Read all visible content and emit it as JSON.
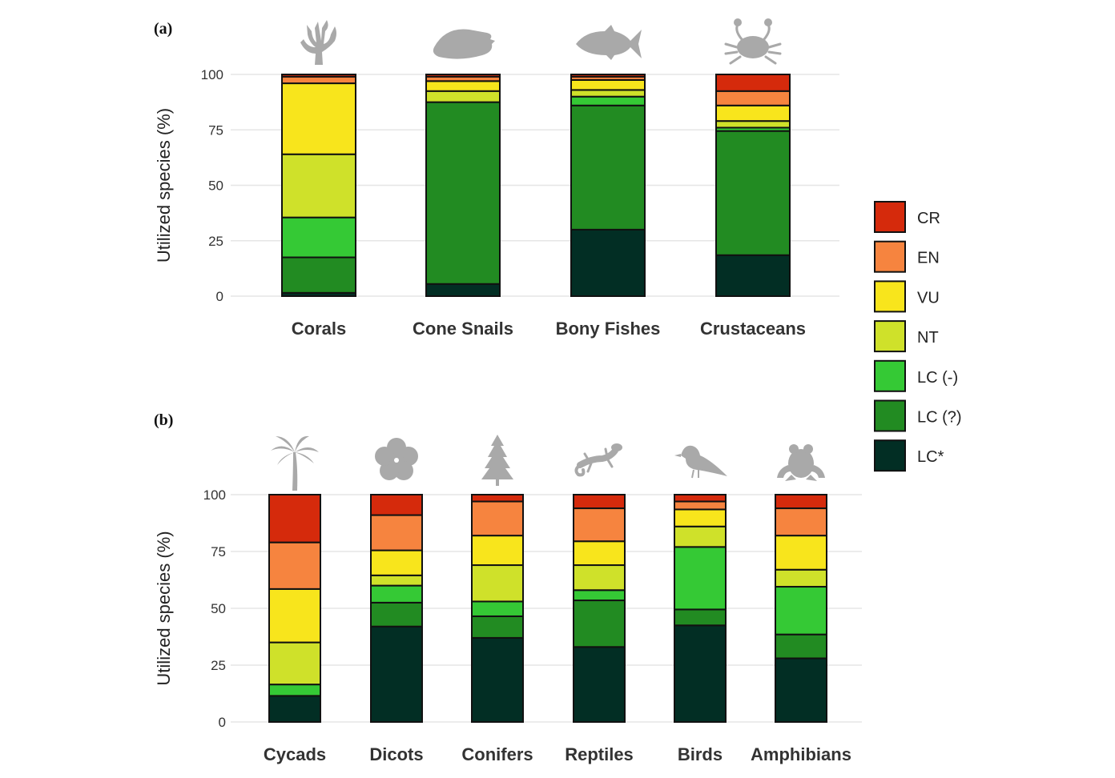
{
  "legend": {
    "items": [
      {
        "key": "CR",
        "label": "CR",
        "color": "#d52a0c"
      },
      {
        "key": "EN",
        "label": "EN",
        "color": "#f6843f"
      },
      {
        "key": "VU",
        "label": "VU",
        "color": "#f8e51c"
      },
      {
        "key": "NT",
        "label": "NT",
        "color": "#cfe12a"
      },
      {
        "key": "LCm",
        "label": "LC (-)",
        "color": "#35c935"
      },
      {
        "key": "LCq",
        "label": "LC (?)",
        "color": "#228b22"
      },
      {
        "key": "LCs",
        "label": "LC*",
        "color": "#022e24"
      }
    ]
  },
  "chart_data": [
    {
      "panel": "(a)",
      "type": "bar",
      "stacked": true,
      "ylabel": "Utilized species (%)",
      "ylim": [
        0,
        100
      ],
      "yticks": [
        0,
        25,
        50,
        75,
        100
      ],
      "grid": true,
      "categories": [
        "Corals",
        "Cone Snails",
        "Bony Fishes",
        "Crustaceans"
      ],
      "icons": [
        "coral-icon",
        "cone-snail-icon",
        "fish-icon",
        "crab-icon"
      ],
      "stack_order": [
        "LC*",
        "LC (?)",
        "LC (-)",
        "NT",
        "VU",
        "EN",
        "CR"
      ],
      "series": [
        {
          "name": "LC*",
          "values": [
            1.5,
            5.5,
            30,
            18.5
          ]
        },
        {
          "name": "LC (?)",
          "values": [
            16,
            82,
            56,
            56
          ]
        },
        {
          "name": "LC (-)",
          "values": [
            18,
            0,
            4,
            1.5
          ]
        },
        {
          "name": "NT",
          "values": [
            28.5,
            5,
            3,
            3
          ]
        },
        {
          "name": "VU",
          "values": [
            32,
            4.5,
            4.5,
            7
          ]
        },
        {
          "name": "EN",
          "values": [
            3,
            2,
            1.5,
            6.5
          ]
        },
        {
          "name": "CR",
          "values": [
            1,
            1,
            1,
            7.5
          ]
        }
      ]
    },
    {
      "panel": "(b)",
      "type": "bar",
      "stacked": true,
      "ylabel": "Utilized species (%)",
      "ylim": [
        0,
        100
      ],
      "yticks": [
        0,
        25,
        50,
        75,
        100
      ],
      "grid": true,
      "categories": [
        "Cycads",
        "Dicots",
        "Conifers",
        "Reptiles",
        "Birds",
        "Amphibians"
      ],
      "icons": [
        "palm-tree-icon",
        "hibiscus-flower-icon",
        "conifer-tree-icon",
        "lizard-icon",
        "bird-icon",
        "frog-icon"
      ],
      "stack_order": [
        "LC*",
        "LC (?)",
        "LC (-)",
        "NT",
        "VU",
        "EN",
        "CR"
      ],
      "series": [
        {
          "name": "LC*",
          "values": [
            11.5,
            42,
            37,
            33,
            42.5,
            28
          ]
        },
        {
          "name": "LC (?)",
          "values": [
            0,
            10.5,
            9.5,
            20.5,
            7,
            10.5
          ]
        },
        {
          "name": "LC (-)",
          "values": [
            5,
            7.5,
            6.5,
            4.5,
            27.5,
            21
          ]
        },
        {
          "name": "NT",
          "values": [
            18.5,
            4.5,
            16,
            11,
            9,
            7.5
          ]
        },
        {
          "name": "VU",
          "values": [
            23.5,
            11,
            13,
            10.5,
            7.5,
            15
          ]
        },
        {
          "name": "EN",
          "values": [
            20.5,
            15.5,
            15,
            14.5,
            3.5,
            12
          ]
        },
        {
          "name": "CR",
          "values": [
            21,
            9,
            3,
            6,
            3,
            6
          ]
        }
      ]
    }
  ]
}
